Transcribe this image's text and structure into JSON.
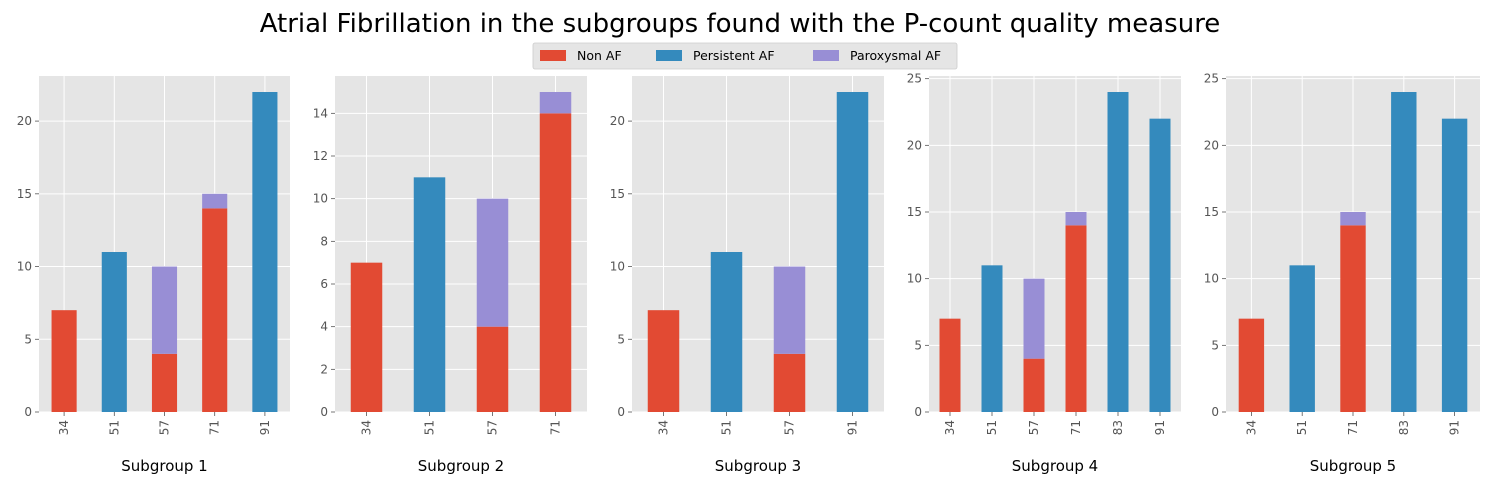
{
  "title": "Atrial Fibrillation in the subgroups found with the P-count quality measure",
  "legend": [
    {
      "name": "Non AF",
      "color": "#e24a33"
    },
    {
      "name": "Persistent AF",
      "color": "#348abd"
    },
    {
      "name": "Paroxysmal AF",
      "color": "#988ed5"
    }
  ],
  "chart_data": [
    {
      "type": "bar",
      "stacked": true,
      "xlabel": "Subgroup 1",
      "categories": [
        "34",
        "51",
        "57",
        "71",
        "91"
      ],
      "series": [
        {
          "name": "Non AF",
          "values": [
            7,
            0,
            4,
            14,
            0
          ]
        },
        {
          "name": "Persistent AF",
          "values": [
            0,
            11,
            0,
            0,
            22
          ]
        },
        {
          "name": "Paroxysmal AF",
          "values": [
            0,
            0,
            6,
            1,
            0
          ]
        }
      ],
      "ylim": [
        0,
        23.1
      ],
      "yticks": [
        0,
        5,
        10,
        15,
        20
      ]
    },
    {
      "type": "bar",
      "stacked": true,
      "xlabel": "Subgroup 2",
      "categories": [
        "34",
        "51",
        "57",
        "71"
      ],
      "series": [
        {
          "name": "Non AF",
          "values": [
            7,
            0,
            4,
            14
          ]
        },
        {
          "name": "Persistent AF",
          "values": [
            0,
            11,
            0,
            0
          ]
        },
        {
          "name": "Paroxysmal AF",
          "values": [
            0,
            0,
            6,
            1
          ]
        }
      ],
      "ylim": [
        0,
        15.75
      ],
      "yticks": [
        0,
        2,
        4,
        6,
        8,
        10,
        12,
        14
      ]
    },
    {
      "type": "bar",
      "stacked": true,
      "xlabel": "Subgroup 3",
      "categories": [
        "34",
        "51",
        "57",
        "91"
      ],
      "series": [
        {
          "name": "Non AF",
          "values": [
            7,
            0,
            4,
            0
          ]
        },
        {
          "name": "Persistent AF",
          "values": [
            0,
            11,
            0,
            22
          ]
        },
        {
          "name": "Paroxysmal AF",
          "values": [
            0,
            0,
            6,
            0
          ]
        }
      ],
      "ylim": [
        0,
        23.1
      ],
      "yticks": [
        0,
        5,
        10,
        15,
        20
      ]
    },
    {
      "type": "bar",
      "stacked": true,
      "xlabel": "Subgroup 4",
      "categories": [
        "34",
        "51",
        "57",
        "71",
        "83",
        "91"
      ],
      "series": [
        {
          "name": "Non AF",
          "values": [
            7,
            0,
            4,
            14,
            0,
            0
          ]
        },
        {
          "name": "Persistent AF",
          "values": [
            0,
            11,
            0,
            0,
            24,
            22
          ]
        },
        {
          "name": "Paroxysmal AF",
          "values": [
            0,
            0,
            6,
            1,
            0,
            0
          ]
        }
      ],
      "ylim": [
        0,
        25.2
      ],
      "yticks": [
        0,
        5,
        10,
        15,
        20,
        25
      ]
    },
    {
      "type": "bar",
      "stacked": true,
      "xlabel": "Subgroup 5",
      "categories": [
        "34",
        "51",
        "71",
        "83",
        "91"
      ],
      "series": [
        {
          "name": "Non AF",
          "values": [
            7,
            0,
            14,
            0,
            0
          ]
        },
        {
          "name": "Persistent AF",
          "values": [
            0,
            11,
            0,
            24,
            22
          ]
        },
        {
          "name": "Paroxysmal AF",
          "values": [
            0,
            0,
            1,
            0,
            0
          ]
        }
      ],
      "ylim": [
        0,
        25.2
      ],
      "yticks": [
        0,
        5,
        10,
        15,
        20,
        25
      ]
    }
  ]
}
